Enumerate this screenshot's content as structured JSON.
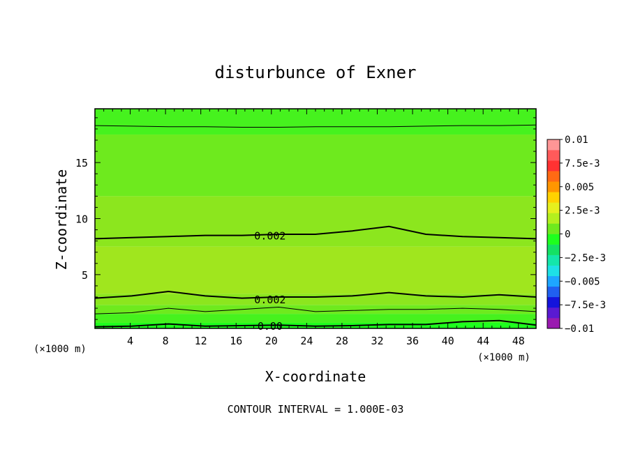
{
  "chart_data": {
    "type": "contour",
    "title": "disturbunce of Exner",
    "xlabel": "X-coordinate",
    "ylabel": "Z-coordinate",
    "x_unit": "(×1000 m)",
    "y_unit": "(×1000 m)",
    "xlim": [
      0,
      50
    ],
    "ylim": [
      0.2,
      19.8
    ],
    "x_ticks": [
      4,
      8,
      12,
      16,
      20,
      24,
      28,
      32,
      36,
      40,
      44,
      48
    ],
    "y_ticks": [
      5,
      10,
      15
    ],
    "footer": "CONTOUR INTERVAL = 1.000E-03",
    "colorbar": {
      "min": -0.01,
      "max": 0.01,
      "labels": [
        "0.01",
        "7.5e-3",
        "0.005",
        "2.5e-3",
        "0",
        "−2.5e-3",
        "−0.005",
        "−7.5e-3",
        "−0.01"
      ],
      "label_values": [
        0.01,
        0.0075,
        0.005,
        0.0025,
        0,
        -0.0025,
        -0.005,
        -0.0075,
        -0.01
      ],
      "colors": [
        "#9a1ab0",
        "#5a1ad2",
        "#1414dc",
        "#2060f0",
        "#1ea6ff",
        "#1ee0e6",
        "#14e6aa",
        "#14e164",
        "#1eff1e",
        "#6eea1e",
        "#b4f01e",
        "#e6f01e",
        "#ffd200",
        "#ff9600",
        "#ff6a14",
        "#ff3232",
        "#ff5a5a",
        "#ff9696"
      ]
    },
    "contour_labels": [
      {
        "text": "0.002",
        "x": 17.0,
        "z": 8.5
      },
      {
        "text": "0.002",
        "x": 17.0,
        "z": 2.8
      },
      {
        "text": "0.00",
        "x": 17.0,
        "z": 0.45
      }
    ],
    "contour_lines": [
      {
        "level": 0.001,
        "z": [
          18.3,
          18.25,
          18.2,
          18.2,
          18.15,
          18.15,
          18.2,
          18.2,
          18.2,
          18.25,
          18.3,
          18.3,
          18.35
        ]
      },
      {
        "level": 0.002,
        "z": [
          8.2,
          8.3,
          8.4,
          8.5,
          8.5,
          8.6,
          8.6,
          8.9,
          9.3,
          8.6,
          8.4,
          8.3,
          8.2
        ]
      },
      {
        "level": 0.002,
        "z": [
          2.9,
          3.1,
          3.5,
          3.1,
          2.9,
          3.0,
          3.0,
          3.1,
          3.4,
          3.1,
          3.0,
          3.2,
          3.0
        ]
      },
      {
        "level": 0.001,
        "z": [
          1.5,
          1.6,
          2.0,
          1.7,
          1.9,
          2.1,
          1.7,
          1.8,
          1.9,
          1.9,
          2.0,
          1.9,
          1.7
        ]
      },
      {
        "level": 0.0,
        "z": [
          0.35,
          0.4,
          0.6,
          0.4,
          0.45,
          0.5,
          0.4,
          0.45,
          0.55,
          0.55,
          0.8,
          0.9,
          0.5
        ]
      }
    ],
    "fill_bands": [
      {
        "z": [
          0.2,
          0.7
        ],
        "color": "#1eff1e"
      },
      {
        "z": [
          0.7,
          1.5
        ],
        "color": "#46f21e"
      },
      {
        "z": [
          1.5,
          2.3
        ],
        "color": "#6eea1e"
      },
      {
        "z": [
          2.3,
          3.3
        ],
        "color": "#8ce61e"
      },
      {
        "z": [
          3.3,
          7.5
        ],
        "color": "#a0e61e"
      },
      {
        "z": [
          7.5,
          12.0
        ],
        "color": "#8ce61e"
      },
      {
        "z": [
          12.0,
          17.5
        ],
        "color": "#6eea1e"
      },
      {
        "z": [
          17.5,
          19.8
        ],
        "color": "#46f21e"
      }
    ]
  }
}
